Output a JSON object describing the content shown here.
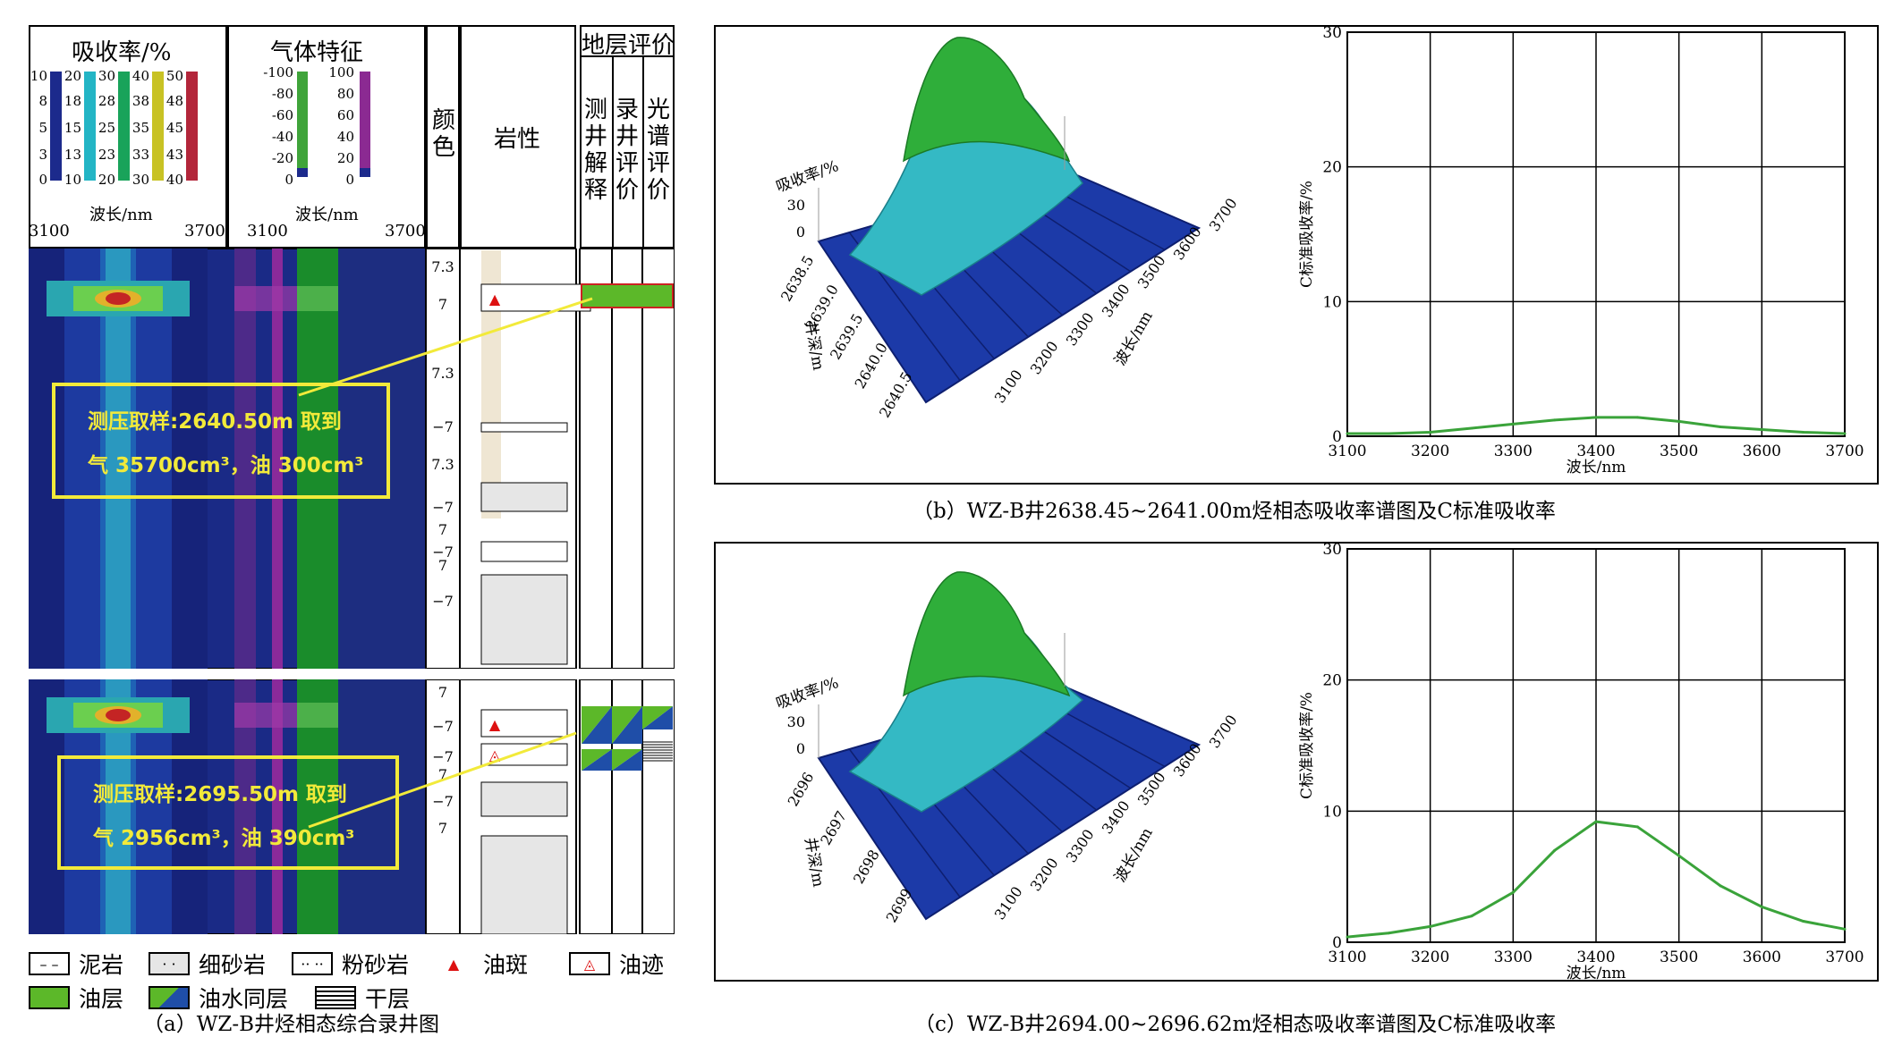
{
  "panel_a": {
    "caption": "（a）WZ-B井烃相态综合录井图",
    "header": {
      "absorbance_title": "吸收率/%",
      "gas_title": "气体特征",
      "wave_label_1": "波长/nm",
      "wave_label_2": "波长/nm",
      "wave_left": "3100",
      "wave_right": "3700",
      "wave_left_2": "3100",
      "wave_right_2": "3700",
      "color_col": "颜色",
      "lith_col": "岩性",
      "eval_title": "地层评价",
      "eval_cols": [
        "测井解释",
        "录井评价",
        "光谱评价"
      ]
    },
    "absorbance_scales": [
      {
        "color": "#1c2a8c",
        "ticks": [
          "10",
          "8",
          "5",
          "3",
          "0"
        ]
      },
      {
        "color": "#23b5c5",
        "ticks": [
          "20",
          "18",
          "15",
          "13",
          "10"
        ]
      },
      {
        "color": "#19a35a",
        "ticks": [
          "30",
          "28",
          "25",
          "23",
          "20"
        ]
      },
      {
        "color": "#c8c224",
        "ticks": [
          "40",
          "38",
          "35",
          "33",
          "30"
        ]
      },
      {
        "color": "#b3263a",
        "ticks": [
          "50",
          "48",
          "45",
          "43",
          "40"
        ]
      }
    ],
    "gas_scale_left": {
      "color": "#3fa43a",
      "ticks": [
        "-100",
        "-80",
        "-60",
        "-40",
        "-20",
        "0"
      ]
    },
    "gas_scale_right": {
      "color": "#8b2a92",
      "ticks": [
        "100",
        "80",
        "60",
        "40",
        "20",
        "0"
      ]
    },
    "upper_track": {
      "color_values": [
        "7.3",
        "7",
        "7.3",
        "−7",
        "7.3",
        "−7",
        "7",
        "−7",
        "7",
        "−7"
      ],
      "annotation_line1": "测压取样:2640.50m 取到",
      "annotation_line2": "气 35700cm³，油 300cm³"
    },
    "lower_track": {
      "color_values": [
        "7",
        "−7",
        "−7",
        "7",
        "−7",
        "7"
      ],
      "annotation_line1": "测压取样:2695.50m 取到",
      "annotation_line2": "气 2956cm³，油 390cm³"
    },
    "legend": [
      {
        "label": "泥岩",
        "icon": "mudstone-icon"
      },
      {
        "label": "细砂岩",
        "icon": "fine-sandstone-icon"
      },
      {
        "label": "粉砂岩",
        "icon": "siltstone-icon"
      },
      {
        "label": "油斑",
        "icon": "oil-spot-icon"
      },
      {
        "label": "油迹",
        "icon": "oil-trace-icon"
      },
      {
        "label": "油层",
        "icon": "oil-layer-icon"
      },
      {
        "label": "油水同层",
        "icon": "oil-water-layer-icon"
      },
      {
        "label": "干层",
        "icon": "dry-layer-icon"
      }
    ],
    "colors": {
      "oil_layer": "#5cb829",
      "annotation": "#f2ea3a",
      "track_bg": "#1c2e8a",
      "green_band": "#1a8c2b",
      "purple_band": "#8a2a9a"
    }
  },
  "chart_data": [
    {
      "type": "surface",
      "panel": "b",
      "zlabel": "吸收率/%",
      "z_ticks": [
        "30",
        "0"
      ],
      "ylabel": "井深/m",
      "depth_ticks": [
        "2638.5",
        "2639.0",
        "2639.5",
        "2640.0",
        "2640.5"
      ],
      "xlabel": "波长/nm",
      "wave_ticks": [
        "3700",
        "3600",
        "3500",
        "3400",
        "3300",
        "3200",
        "3100"
      ]
    },
    {
      "type": "line",
      "panel": "b",
      "title": "",
      "xlabel": "波长/nm",
      "ylabel": "C标准吸收率/%",
      "xlim": [
        3100,
        3700
      ],
      "ylim": [
        0,
        30
      ],
      "x_ticks": [
        3100,
        3200,
        3300,
        3400,
        3500,
        3600,
        3700
      ],
      "y_ticks": [
        0,
        10,
        20,
        30
      ],
      "x": [
        3100,
        3150,
        3200,
        3250,
        3300,
        3350,
        3400,
        3450,
        3500,
        3550,
        3600,
        3650,
        3700
      ],
      "y": [
        0.2,
        0.2,
        0.3,
        0.6,
        0.9,
        1.2,
        1.4,
        1.4,
        1.1,
        0.7,
        0.5,
        0.3,
        0.2
      ]
    },
    {
      "type": "surface",
      "panel": "c",
      "zlabel": "吸收率/%",
      "z_ticks": [
        "30",
        "0"
      ],
      "ylabel": "井深/m",
      "depth_ticks": [
        "2696",
        "2697",
        "2698",
        "2699"
      ],
      "xlabel": "波长/nm",
      "wave_ticks": [
        "3700",
        "3600",
        "3500",
        "3400",
        "3300",
        "3200",
        "3100"
      ]
    },
    {
      "type": "line",
      "panel": "c",
      "title": "",
      "xlabel": "波长/nm",
      "ylabel": "C标准吸收率/%",
      "xlim": [
        3100,
        3700
      ],
      "ylim": [
        0,
        30
      ],
      "x_ticks": [
        3100,
        3200,
        3300,
        3400,
        3500,
        3600,
        3700
      ],
      "y_ticks": [
        0,
        10,
        20,
        30
      ],
      "x": [
        3100,
        3150,
        3200,
        3250,
        3300,
        3350,
        3400,
        3450,
        3500,
        3550,
        3600,
        3650,
        3700
      ],
      "y": [
        0.4,
        0.7,
        1.2,
        2.0,
        3.8,
        7.0,
        9.2,
        8.8,
        6.6,
        4.3,
        2.7,
        1.6,
        1.0
      ]
    }
  ],
  "captions": {
    "b": "（b）WZ-B井2638.45~2641.00m烃相态吸收率谱图及C标准吸收率",
    "c": "（c）WZ-B井2694.00~2696.62m烃相态吸收率谱图及C标准吸收率"
  }
}
